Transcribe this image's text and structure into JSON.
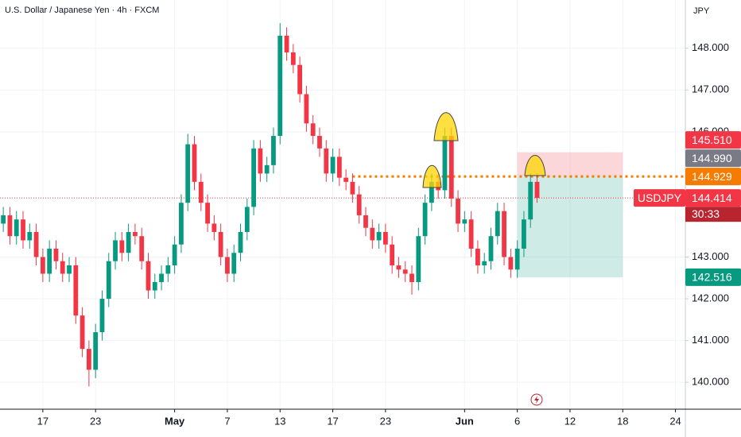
{
  "chart_data": {
    "type": "candlestick",
    "title": "U.S. Dollar / Japanese Yen · 4h · FXCM",
    "currency": "JPY",
    "up_color": "#089981",
    "down_color": "#f23645",
    "open": [
      143.8,
      144.0,
      143.5,
      143.9,
      143.4,
      143.6,
      143.0,
      142.6,
      143.2,
      142.9,
      142.6,
      142.8,
      141.6,
      140.8,
      140.3,
      141.2,
      142.0,
      142.9,
      143.4,
      143.1,
      143.6,
      143.5,
      142.9,
      142.2,
      142.4,
      142.6,
      142.8,
      143.3,
      144.3,
      145.7,
      144.8,
      144.3,
      143.8,
      143.6,
      143.0,
      142.6,
      143.1,
      143.6,
      144.2,
      145.6,
      145.0,
      145.2,
      145.9,
      148.3,
      147.9,
      147.6,
      146.9,
      146.2,
      145.9,
      145.6,
      145.0,
      145.4,
      144.9,
      144.8,
      144.5,
      144.0,
      143.7,
      143.4,
      143.6,
      143.3,
      142.8,
      142.7,
      142.6,
      142.4,
      143.5,
      144.3,
      144.8,
      144.6,
      145.9,
      144.4,
      143.8,
      143.9,
      143.2,
      142.8,
      142.9,
      143.5,
      144.1,
      143.0,
      142.7,
      143.2,
      143.9,
      144.8
    ],
    "high": [
      144.2,
      144.2,
      144.1,
      144.1,
      143.8,
      143.8,
      143.2,
      143.4,
      143.4,
      143.1,
      143.0,
      143.0,
      141.8,
      141.0,
      141.4,
      142.2,
      143.1,
      143.6,
      143.6,
      143.8,
      143.8,
      143.7,
      143.1,
      142.6,
      142.8,
      143.0,
      143.5,
      144.5,
      145.95,
      145.9,
      145.0,
      144.5,
      144.0,
      143.8,
      143.2,
      143.3,
      143.8,
      144.4,
      145.8,
      145.8,
      145.4,
      146.1,
      148.6,
      148.5,
      148.1,
      147.8,
      147.1,
      146.4,
      146.1,
      145.8,
      145.6,
      145.6,
      145.1,
      145.0,
      144.7,
      144.2,
      143.9,
      143.8,
      143.8,
      143.5,
      143.0,
      142.9,
      142.8,
      143.7,
      144.5,
      145.0,
      145.0,
      146.1,
      146.1,
      144.6,
      144.1,
      144.1,
      143.4,
      143.1,
      143.7,
      144.3,
      144.3,
      143.2,
      143.4,
      144.1,
      145.0,
      145.0
    ],
    "low": [
      143.6,
      143.3,
      143.3,
      143.2,
      143.2,
      142.8,
      142.4,
      142.4,
      142.7,
      142.4,
      142.4,
      141.4,
      140.6,
      139.9,
      140.1,
      141.0,
      141.8,
      142.7,
      142.9,
      142.9,
      143.3,
      142.7,
      142.0,
      142.0,
      142.2,
      142.4,
      142.6,
      143.1,
      144.1,
      144.6,
      144.1,
      143.6,
      143.4,
      142.8,
      142.4,
      142.4,
      142.9,
      143.4,
      144.0,
      144.8,
      144.8,
      145.0,
      145.7,
      147.7,
      147.4,
      146.7,
      146.0,
      145.7,
      145.4,
      144.8,
      144.8,
      144.7,
      144.6,
      144.3,
      143.8,
      143.5,
      143.2,
      143.2,
      143.1,
      142.6,
      142.5,
      142.4,
      142.1,
      142.2,
      143.3,
      144.1,
      144.4,
      144.4,
      144.2,
      143.6,
      143.6,
      143.0,
      142.6,
      142.6,
      142.7,
      143.3,
      142.8,
      142.5,
      142.5,
      143.0,
      143.7,
      144.3
    ],
    "close": [
      144.0,
      143.5,
      143.9,
      143.4,
      143.6,
      143.0,
      142.6,
      143.2,
      142.9,
      142.6,
      142.8,
      141.6,
      140.8,
      140.3,
      141.2,
      142.0,
      142.9,
      143.4,
      143.1,
      143.6,
      143.5,
      142.9,
      142.2,
      142.4,
      142.6,
      142.8,
      143.3,
      144.3,
      145.7,
      144.8,
      144.3,
      143.8,
      143.6,
      143.0,
      142.6,
      143.1,
      143.6,
      144.2,
      145.6,
      145.0,
      145.2,
      145.9,
      148.3,
      147.9,
      147.6,
      146.9,
      146.2,
      145.9,
      145.6,
      145.0,
      145.4,
      144.9,
      144.8,
      144.5,
      144.0,
      143.7,
      143.4,
      143.6,
      143.3,
      142.8,
      142.7,
      142.6,
      142.4,
      143.5,
      144.3,
      144.8,
      144.6,
      145.9,
      144.4,
      143.8,
      143.9,
      143.2,
      142.8,
      142.9,
      143.5,
      144.1,
      143.0,
      142.7,
      143.2,
      143.9,
      144.8,
      144.414
    ],
    "xlim": [
      -0.5,
      103.5
    ],
    "xticks": [
      {
        "value": 6,
        "label": "17"
      },
      {
        "value": 14,
        "label": "23"
      },
      {
        "value": 26,
        "label": "May"
      },
      {
        "value": 34,
        "label": "7"
      },
      {
        "value": 42,
        "label": "13"
      },
      {
        "value": 50,
        "label": "17"
      },
      {
        "value": 58,
        "label": "23"
      },
      {
        "value": 70,
        "label": "Jun"
      },
      {
        "value": 78,
        "label": "6"
      },
      {
        "value": 86,
        "label": "12"
      },
      {
        "value": 94,
        "label": "18"
      },
      {
        "value": 102,
        "label": "24"
      }
    ],
    "ylim": [
      139.356,
      149.155
    ],
    "yticks": [
      {
        "value": 140,
        "label": "140.000"
      },
      {
        "value": 141,
        "label": "141.000"
      },
      {
        "value": 142,
        "label": "142.000"
      },
      {
        "value": 143,
        "label": "143.000"
      },
      {
        "value": 146,
        "label": "146.000"
      },
      {
        "value": 147,
        "label": "147.000"
      },
      {
        "value": 148,
        "label": "148.000"
      }
    ],
    "grid": true,
    "position": {
      "entry": 144.929,
      "stop": 145.51,
      "target": 142.516,
      "start": 78,
      "end": 94,
      "line_start": 53
    },
    "price_tags": [
      {
        "value": 145.51,
        "label": "145.510",
        "color": "#f23645"
      },
      {
        "value": 144.99,
        "label": "144.990",
        "color": "#787b86"
      },
      {
        "value": 144.929,
        "label": "144.929",
        "color": "#f57c00"
      },
      {
        "value": 144.414,
        "label": "144.414",
        "color": "#f23645",
        "symbol": "USDJPY",
        "countdown": "30:33"
      },
      {
        "value": 142.516,
        "label": "142.516",
        "color": "#089981"
      }
    ]
  }
}
